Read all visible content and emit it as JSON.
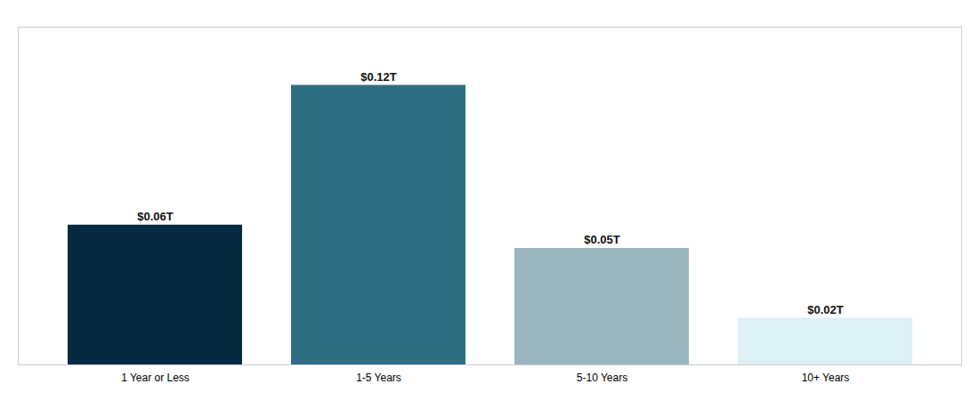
{
  "chart_data": {
    "type": "bar",
    "categories": [
      "1 Year or Less",
      "1-5 Years",
      "5-10 Years",
      "10+ Years"
    ],
    "values": [
      0.06,
      0.12,
      0.05,
      0.02
    ],
    "value_labels": [
      "$0.06T",
      "$0.12T",
      "$0.05T",
      "$0.02T"
    ],
    "colors": [
      "#052940",
      "#2E6E85",
      "#9BB5BF",
      "#DCF0F5"
    ],
    "ylim": [
      0,
      0.145
    ],
    "data_labels": true,
    "tick_labels": "x"
  }
}
